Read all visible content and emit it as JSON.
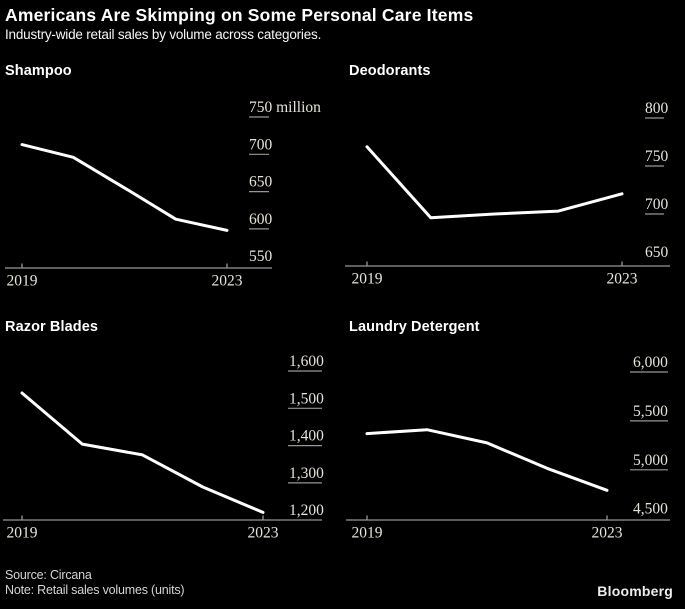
{
  "header": {
    "title": "Americans Are Skimping on Some Personal Care Items",
    "subtitle": "Industry-wide retail sales by volume across categories."
  },
  "footer": {
    "source": "Source: Circana",
    "note": "Note: Retail sales volumes (units)",
    "brand": "Bloomberg"
  },
  "colors": {
    "background": "#000000",
    "title_text": "#ffffff",
    "line": "#ffffff",
    "axis": "#969696",
    "tick_label": "#e6e3da",
    "footer_text": "#d4d4d4"
  },
  "chart_data": [
    {
      "id": "shampoo",
      "type": "line",
      "title": "Shampoo",
      "x": [
        2019,
        2020,
        2021,
        2022,
        2023
      ],
      "values": [
        713,
        696,
        655,
        613,
        598
      ],
      "yticks": [
        750,
        700,
        650,
        600,
        550
      ],
      "ytick_labels": [
        "750 million",
        "700",
        "650",
        "600",
        "550"
      ],
      "ylim": [
        550,
        750
      ],
      "xtick_labels": [
        "2019",
        "2023"
      ],
      "unit": "million units",
      "grid": "right-tick-dashes",
      "legend": "none"
    },
    {
      "id": "deodorants",
      "type": "line",
      "title": "Deodorants",
      "x": [
        2019,
        2020,
        2021,
        2022,
        2023
      ],
      "values": [
        770,
        696,
        700,
        703,
        721
      ],
      "yticks": [
        800,
        750,
        700,
        650
      ],
      "ytick_labels": [
        "800",
        "750",
        "700",
        "650"
      ],
      "ylim": [
        650,
        800
      ],
      "xtick_labels": [
        "2019",
        "2023"
      ],
      "unit": "million units",
      "grid": "right-tick-dashes",
      "legend": "none"
    },
    {
      "id": "razor",
      "type": "line",
      "title": "Razor Blades",
      "x": [
        2019,
        2020,
        2021,
        2022,
        2023
      ],
      "values": [
        1541,
        1404,
        1375,
        1289,
        1221
      ],
      "yticks": [
        1600,
        1500,
        1400,
        1300,
        1200
      ],
      "ytick_labels": [
        "1,600",
        "1,500",
        "1,400",
        "1,300",
        "1,200"
      ],
      "ylim": [
        1200,
        1600
      ],
      "xtick_labels": [
        "2019",
        "2023"
      ],
      "unit": "million units",
      "grid": "right-tick-dashes",
      "legend": "none"
    },
    {
      "id": "laundry",
      "type": "line",
      "title": "Laundry Detergent",
      "x": [
        2019,
        2020,
        2021,
        2022,
        2023
      ],
      "values": [
        5370,
        5410,
        5275,
        5015,
        4790
      ],
      "yticks": [
        6000,
        5500,
        5000,
        4500
      ],
      "ytick_labels": [
        "6,000",
        "5,500",
        "5,000",
        "4,500"
      ],
      "ylim": [
        4500,
        6000
      ],
      "xtick_labels": [
        "2019",
        "2023"
      ],
      "unit": "million units",
      "grid": "right-tick-dashes",
      "legend": "none"
    }
  ]
}
